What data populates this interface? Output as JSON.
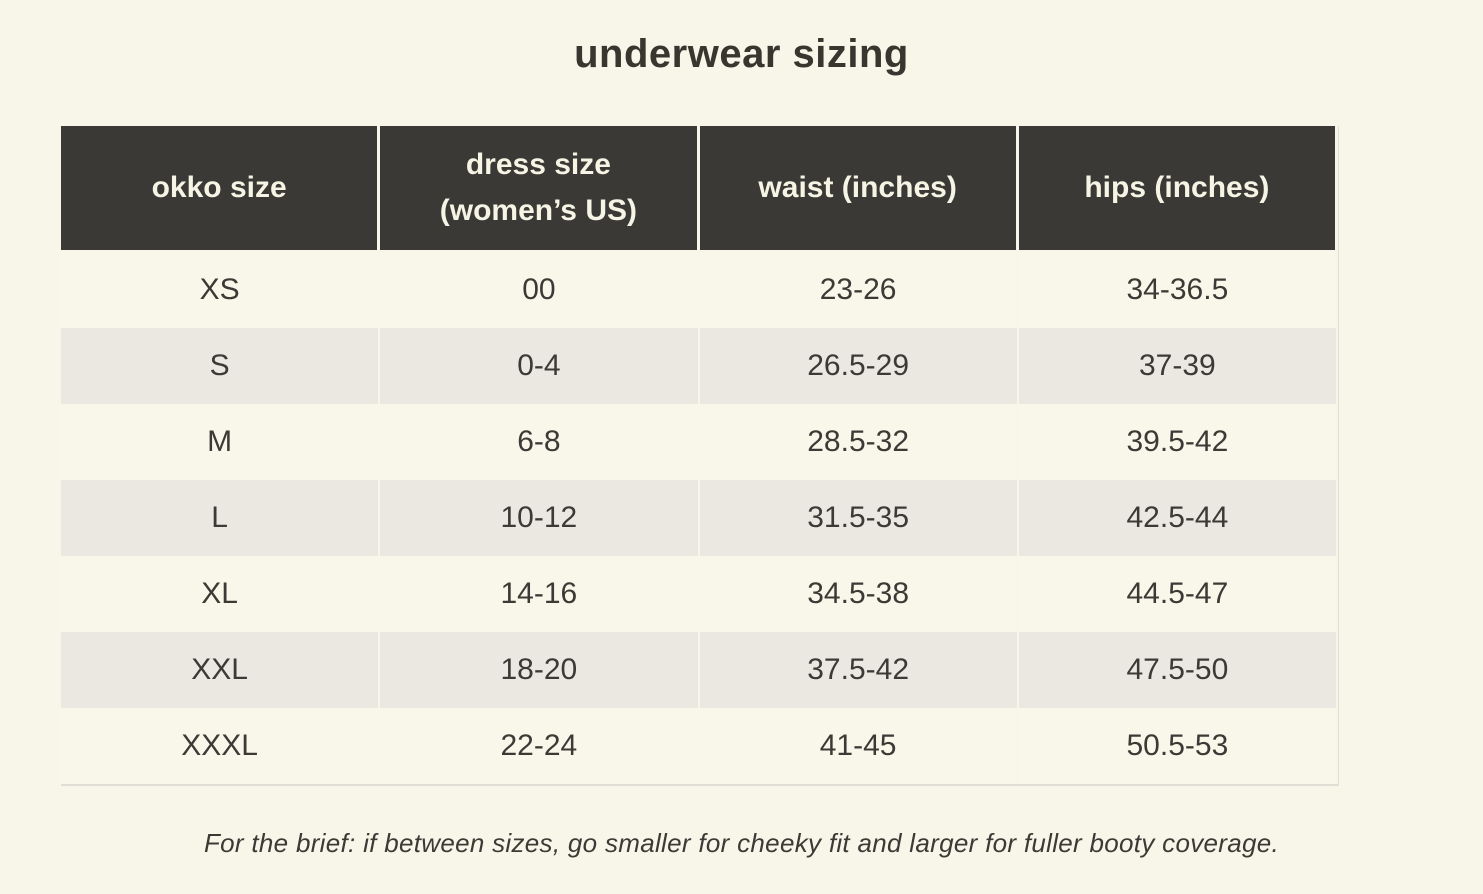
{
  "page": {
    "title": "underwear sizing",
    "footnote": "For the brief: if between sizes, go smaller for cheeky fit and larger for fuller booty coverage."
  },
  "colors": {
    "background": "#f8f6e9",
    "header_background": "#3a3935",
    "header_text": "#f6f4e5",
    "row_cream": "#f9f7ea",
    "row_gray": "#eae8e0",
    "body_text": "#3b3a35"
  },
  "table": {
    "headers": [
      "okko size",
      "dress size\n(women’s US)",
      "waist (inches)",
      "hips (inches)"
    ],
    "rows": [
      {
        "cells": [
          "XS",
          "00",
          "23-26",
          "34-36.5"
        ]
      },
      {
        "cells": [
          "S",
          "0-4",
          "26.5-29",
          "37-39"
        ]
      },
      {
        "cells": [
          "M",
          "6-8",
          "28.5-32",
          "39.5-42"
        ]
      },
      {
        "cells": [
          "L",
          "10-12",
          "31.5-35",
          "42.5-44"
        ]
      },
      {
        "cells": [
          "XL",
          "14-16",
          "34.5-38",
          "44.5-47"
        ]
      },
      {
        "cells": [
          "XXL",
          "18-20",
          "37.5-42",
          "47.5-50"
        ]
      },
      {
        "cells": [
          "XXXL",
          "22-24",
          "41-45",
          "50.5-53"
        ]
      }
    ]
  }
}
